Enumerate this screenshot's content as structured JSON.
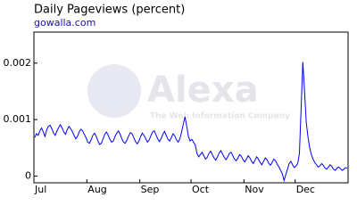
{
  "chart_data": {
    "type": "line",
    "title": "Daily Pageviews (percent)",
    "subtitle": "gowalla.com",
    "watermark": "Alexa",
    "watermark_tagline": "The Web Information Company",
    "categories": [
      "Jul",
      null,
      null,
      null,
      null,
      null,
      null,
      null,
      null,
      null,
      null,
      null,
      null,
      null,
      null,
      null,
      null,
      null,
      null,
      null,
      null,
      null,
      null,
      null,
      null,
      null,
      null,
      null,
      null,
      null,
      null,
      "Aug",
      null,
      null,
      null,
      null,
      null,
      null,
      null,
      null,
      null,
      null,
      null,
      null,
      null,
      null,
      null,
      null,
      null,
      null,
      null,
      null,
      null,
      null,
      null,
      null,
      null,
      null,
      null,
      null,
      null,
      null,
      "Sep",
      null,
      null,
      null,
      null,
      null,
      null,
      null,
      null,
      null,
      null,
      null,
      null,
      null,
      null,
      null,
      null,
      null,
      null,
      null,
      null,
      null,
      null,
      null,
      null,
      null,
      null,
      null,
      null,
      null,
      "Oct",
      null,
      null,
      null,
      null,
      null,
      null,
      null,
      null,
      null,
      null,
      null,
      null,
      null,
      null,
      null,
      null,
      null,
      null,
      null,
      null,
      null,
      null,
      null,
      null,
      null,
      null,
      null,
      null,
      null,
      null,
      "Nov",
      null,
      null,
      null,
      null,
      null,
      null,
      null,
      null,
      null,
      null,
      null,
      null,
      null,
      null,
      null,
      null,
      null,
      null,
      null,
      null,
      null,
      null,
      null,
      null,
      null,
      null,
      null,
      null,
      null,
      "Dec",
      null,
      null,
      null,
      null,
      null,
      null,
      null,
      null,
      null,
      null,
      null,
      null,
      null,
      null,
      null,
      null,
      null,
      null,
      null,
      null,
      null,
      null,
      null,
      null,
      null,
      null,
      null,
      null,
      null,
      null
    ],
    "series": [
      {
        "color": "#0000ff",
        "values": [
          0.00068,
          0.00075,
          0.00072,
          0.0008,
          0.00085,
          0.00078,
          0.0007,
          0.00082,
          0.00088,
          0.0009,
          0.00084,
          0.00076,
          0.00072,
          0.0008,
          0.00086,
          0.00091,
          0.00085,
          0.00078,
          0.00074,
          0.00082,
          0.00088,
          0.00084,
          0.00079,
          0.00072,
          0.00066,
          0.0007,
          0.00078,
          0.00083,
          0.0008,
          0.00074,
          0.00068,
          0.0006,
          0.00058,
          0.00064,
          0.00072,
          0.00076,
          0.0007,
          0.00062,
          0.00056,
          0.00058,
          0.00066,
          0.00074,
          0.00078,
          0.00072,
          0.00065,
          0.0006,
          0.00062,
          0.0007,
          0.00076,
          0.0008,
          0.00074,
          0.00066,
          0.0006,
          0.00058,
          0.00064,
          0.00071,
          0.00077,
          0.00075,
          0.00068,
          0.00061,
          0.00057,
          0.00062,
          0.0007,
          0.00076,
          0.00072,
          0.00066,
          0.0006,
          0.00064,
          0.00071,
          0.00078,
          0.0008,
          0.00073,
          0.00066,
          0.00061,
          0.00066,
          0.00074,
          0.00079,
          0.00072,
          0.00065,
          0.00062,
          0.00068,
          0.00075,
          0.00071,
          0.00064,
          0.0006,
          0.00066,
          0.00078,
          0.00092,
          0.00105,
          0.00088,
          0.0007,
          0.00062,
          0.00065,
          0.0006,
          0.00055,
          0.0004,
          0.00034,
          0.00038,
          0.00042,
          0.00036,
          0.0003,
          0.00033,
          0.0004,
          0.00044,
          0.00038,
          0.00032,
          0.00028,
          0.00034,
          0.00041,
          0.00045,
          0.00039,
          0.00033,
          0.00029,
          0.00034,
          0.0004,
          0.00042,
          0.00036,
          0.0003,
          0.00027,
          0.00032,
          0.00038,
          0.00035,
          0.00029,
          0.00025,
          0.0003,
          0.00036,
          0.00032,
          0.00026,
          0.00022,
          0.00028,
          0.00034,
          0.0003,
          0.00024,
          0.0002,
          0.00026,
          0.00032,
          0.00029,
          0.00023,
          0.00019,
          0.00024,
          0.0003,
          0.00027,
          0.00021,
          0.00016,
          0.0001,
          4e-05,
          -8e-05,
          2e-05,
          0.00012,
          0.00022,
          0.00026,
          0.0002,
          0.00015,
          0.00018,
          0.00022,
          0.0004,
          0.0012,
          0.00202,
          0.0015,
          0.00095,
          0.0007,
          0.0005,
          0.00038,
          0.0003,
          0.00024,
          0.0002,
          0.00016,
          0.00018,
          0.00022,
          0.00019,
          0.00014,
          0.00012,
          0.00016,
          0.0002,
          0.00017,
          0.00012,
          0.0001,
          0.00014,
          0.00016,
          0.00013,
          0.0001,
          0.00012,
          0.00015,
          0.00014
        ]
      }
    ],
    "ylim": [
      -0.00012,
      0.00255
    ],
    "yticks": [
      0,
      0.001,
      0.002
    ],
    "grid": false
  }
}
